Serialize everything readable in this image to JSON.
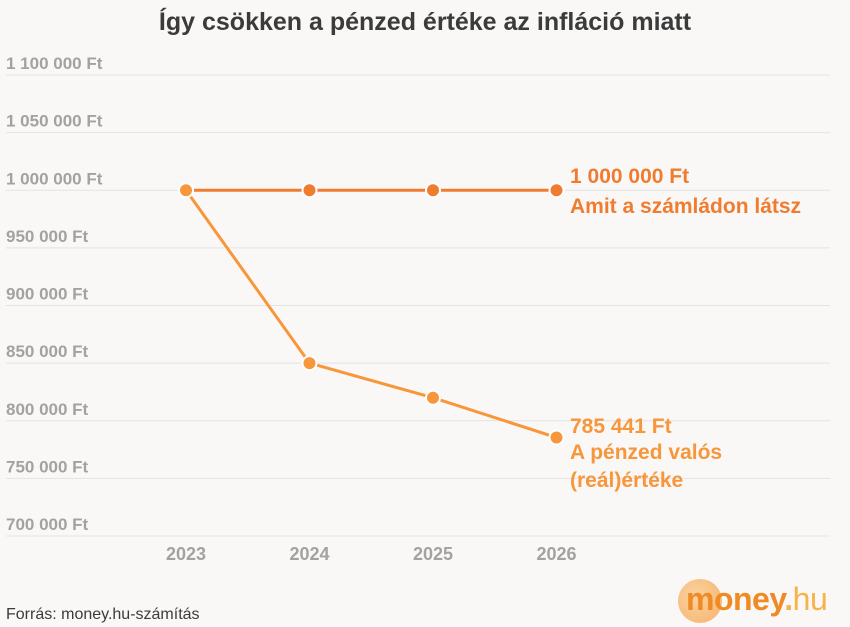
{
  "title": "Így csökken a pénzed értéke az infláció miatt",
  "source": "Forrás: money.hu-számítás",
  "logo": {
    "money": "money",
    "dot": ".",
    "hu": "hu"
  },
  "chart_data": {
    "type": "line",
    "title": "Így csökken a pénzed értéke az infláció miatt",
    "categories": [
      "2023",
      "2024",
      "2025",
      "2026"
    ],
    "y_ticks": [
      "1 100 000 Ft",
      "1 050 000 Ft",
      "1 000 000 Ft",
      "950 000 Ft",
      "900 000 Ft",
      "850 000 Ft",
      "800 000 Ft",
      "750 000 Ft",
      "700 000 Ft"
    ],
    "y_tick_values": [
      1100000,
      1050000,
      1000000,
      950000,
      900000,
      850000,
      800000,
      750000,
      700000
    ],
    "ylim": [
      690000,
      1110000
    ],
    "grid": true,
    "series": [
      {
        "values": [
          1000000,
          1000000,
          1000000,
          1000000
        ],
        "color": "#f07c30",
        "label_lines": [
          "1 000 000 Ft",
          "Amit a számládon látsz"
        ]
      },
      {
        "values": [
          1000000,
          850000,
          820000,
          785441
        ],
        "color": "#f7963a",
        "label_lines": [
          "785 441 Ft",
          "A pénzed valós",
          "(reál)értéke"
        ]
      }
    ]
  }
}
